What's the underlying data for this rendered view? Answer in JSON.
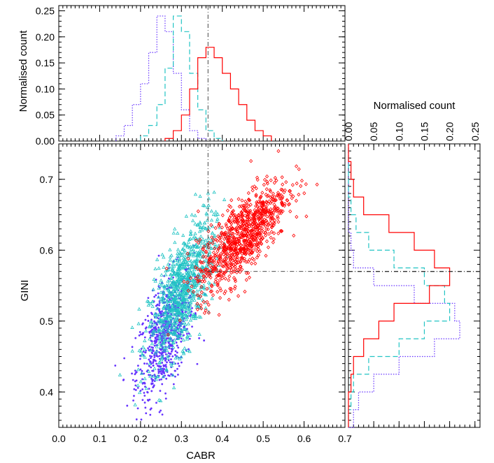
{
  "chart_data": [
    {
      "type": "scatter",
      "panel": "main",
      "xlabel": "CABR",
      "ylabel": "GINI",
      "xlim": [
        0.0,
        0.7
      ],
      "ylim": [
        0.35,
        0.75
      ],
      "xticks": [
        "0.0",
        "0.1",
        "0.2",
        "0.3",
        "0.4",
        "0.5",
        "0.6",
        "0.7"
      ],
      "yticks": [
        "0.4",
        "0.5",
        "0.6",
        "0.7"
      ],
      "threshold_x": 0.365,
      "threshold_y": 0.57,
      "series": [
        {
          "name": "purple contours",
          "color": "#6633ff",
          "center": [
            0.26,
            0.48
          ],
          "spread": [
            0.035,
            0.045
          ],
          "corr": 0.55
        },
        {
          "name": "cyan triangles",
          "color": "#22c4c4",
          "center": [
            0.3,
            0.54
          ],
          "spread": [
            0.04,
            0.05
          ],
          "corr": 0.65
        },
        {
          "name": "red diamonds",
          "color": "#ff0000",
          "center": [
            0.45,
            0.62
          ],
          "spread": [
            0.055,
            0.04
          ],
          "corr": 0.75
        }
      ]
    },
    {
      "type": "line",
      "panel": "top-histogram",
      "ylabel": "Normalised count",
      "ylim": [
        0.0,
        0.26
      ],
      "yticks": [
        "0.00",
        "0.05",
        "0.10",
        "0.15",
        "0.20",
        "0.25"
      ],
      "bin_width": 0.02,
      "series": [
        {
          "name": "purple",
          "color": "#6633ff",
          "style": "dotted",
          "bin_start": 0.14,
          "values": [
            0.01,
            0.03,
            0.07,
            0.11,
            0.17,
            0.24,
            0.21,
            0.13,
            0.06,
            0.02,
            0.005
          ]
        },
        {
          "name": "cyan",
          "color": "#22c4c4",
          "style": "dashed",
          "bin_start": 0.2,
          "values": [
            0.01,
            0.03,
            0.07,
            0.14,
            0.24,
            0.21,
            0.13,
            0.06,
            0.02,
            0.005
          ]
        },
        {
          "name": "red",
          "color": "#ff0000",
          "style": "solid",
          "bin_start": 0.26,
          "values": [
            0.005,
            0.02,
            0.05,
            0.1,
            0.16,
            0.18,
            0.16,
            0.13,
            0.1,
            0.07,
            0.04,
            0.02,
            0.01
          ]
        }
      ]
    },
    {
      "type": "line",
      "panel": "right-histogram",
      "xlabel": "Normalised count",
      "xlim": [
        0.0,
        0.26
      ],
      "xticks": [
        "0.00",
        "0.05",
        "0.10",
        "0.15",
        "0.20",
        "0.25"
      ],
      "bin_width": 0.025,
      "series": [
        {
          "name": "purple",
          "color": "#6633ff",
          "style": "dotted",
          "bin_start": 0.35,
          "values": [
            0.01,
            0.02,
            0.05,
            0.1,
            0.17,
            0.22,
            0.21,
            0.13,
            0.05,
            0.01,
            0.005,
            0.0,
            0.0,
            0.0,
            0.0,
            0.0
          ]
        },
        {
          "name": "cyan",
          "color": "#22c4c4",
          "style": "dashed",
          "bin_start": 0.35,
          "values": [
            0.0,
            0.005,
            0.01,
            0.04,
            0.1,
            0.15,
            0.2,
            0.19,
            0.15,
            0.09,
            0.04,
            0.015,
            0.005,
            0.0,
            0.0,
            0.0
          ]
        },
        {
          "name": "red",
          "color": "#ff0000",
          "style": "solid",
          "bin_start": 0.35,
          "values": [
            0.0,
            0.0,
            0.005,
            0.01,
            0.03,
            0.06,
            0.09,
            0.16,
            0.2,
            0.17,
            0.13,
            0.08,
            0.03,
            0.01,
            0.005,
            0.0
          ]
        }
      ]
    }
  ]
}
